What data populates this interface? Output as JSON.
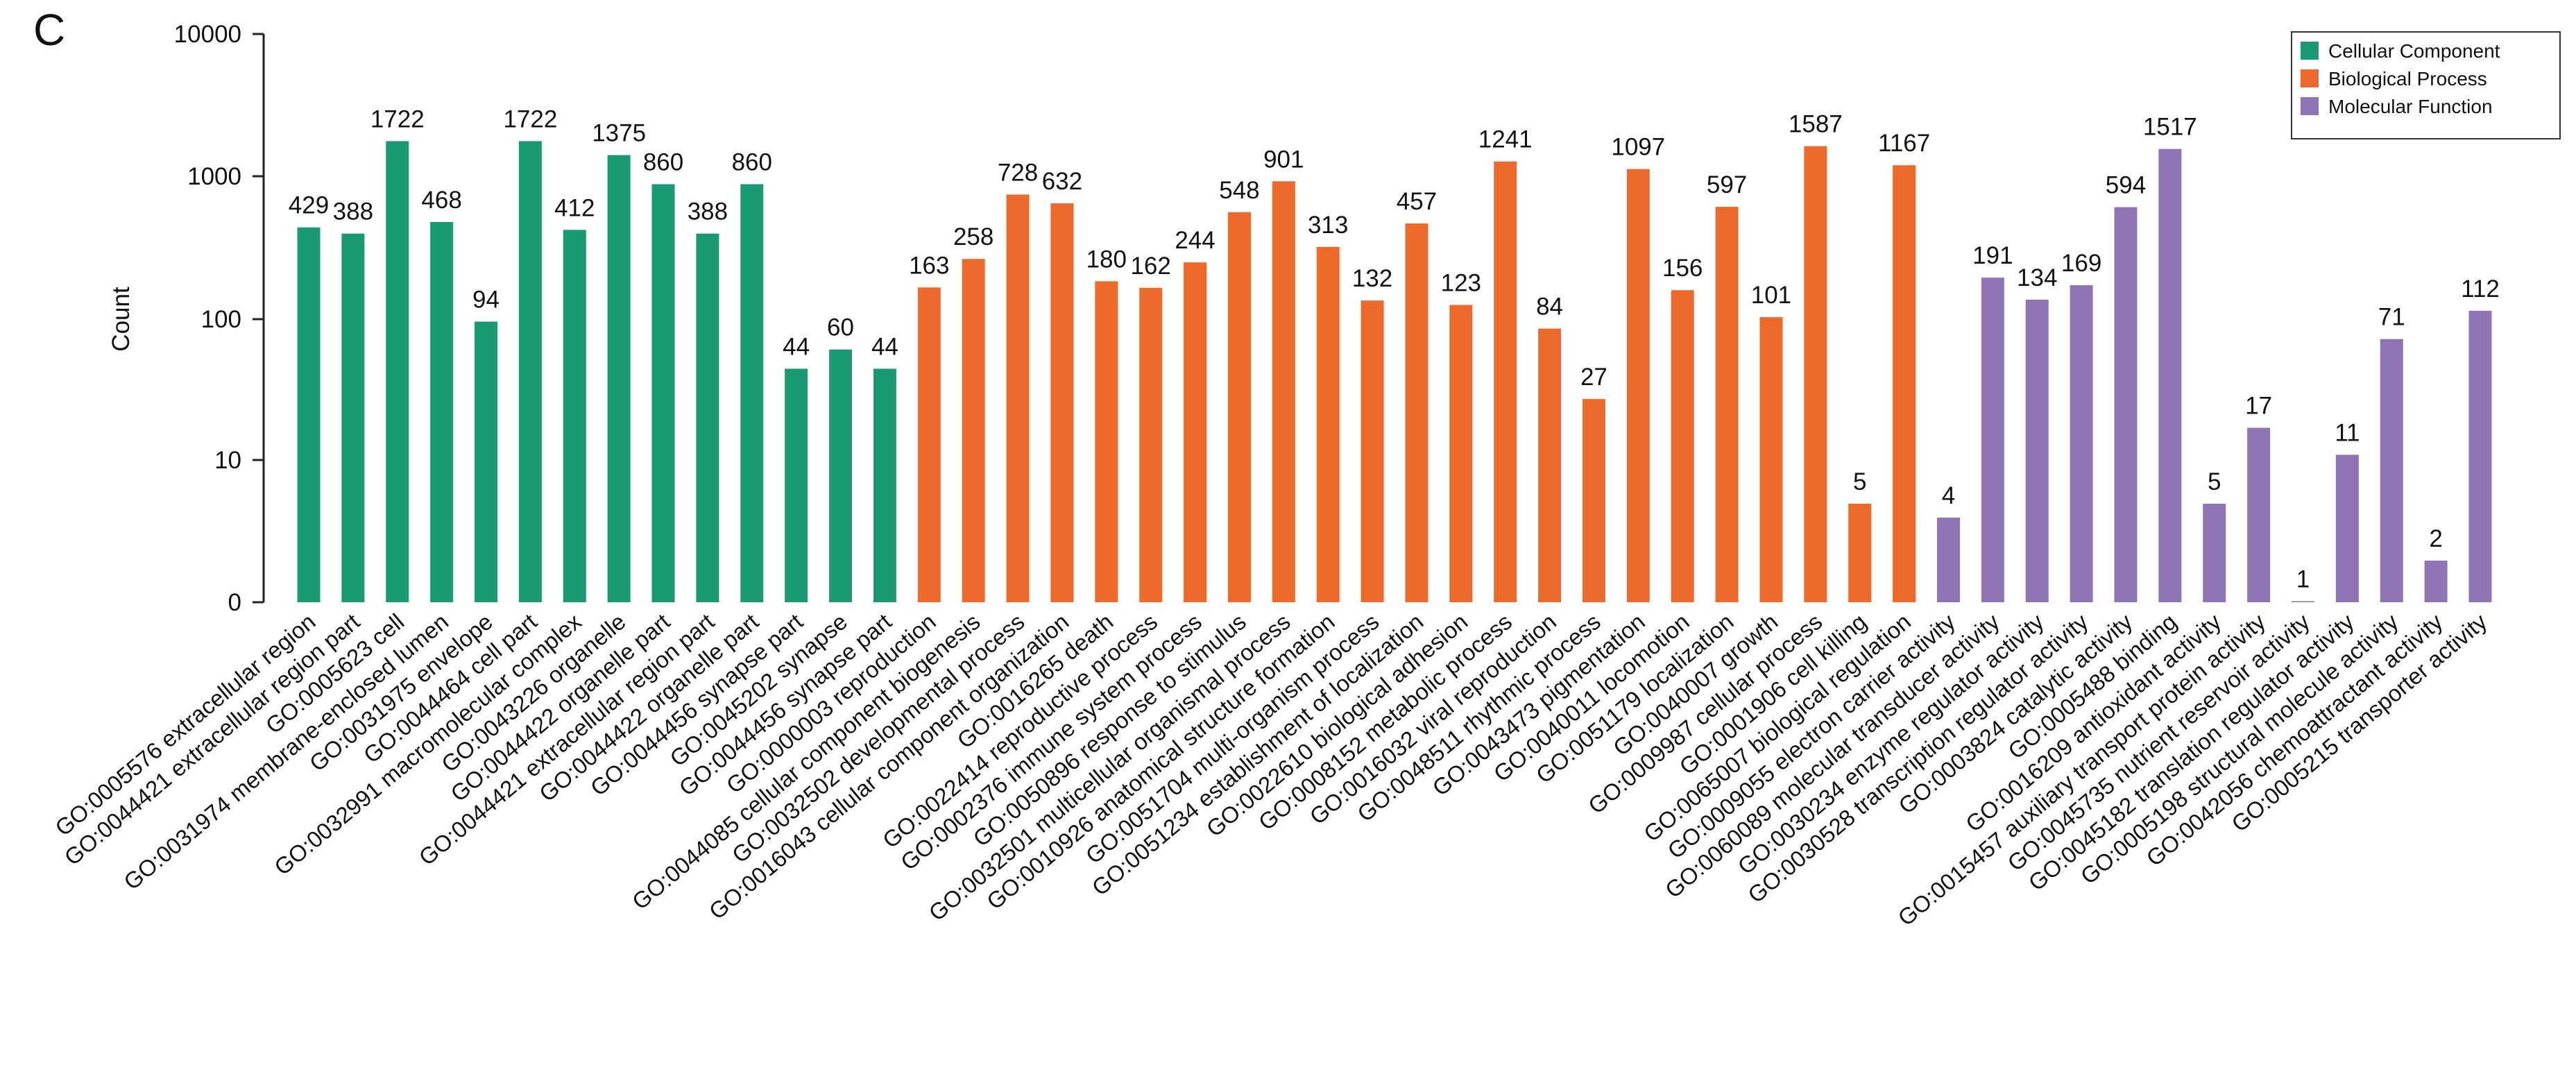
{
  "panel_label": "C",
  "chart_data": {
    "type": "bar",
    "title": "",
    "xlabel": "",
    "ylabel": "Count",
    "yscale": "log",
    "ylim": [
      0,
      10000
    ],
    "yticks": [
      {
        "value": 0,
        "label": "0"
      },
      {
        "value": 10,
        "label": "10"
      },
      {
        "value": 100,
        "label": "100"
      },
      {
        "value": 1000,
        "label": "1000"
      },
      {
        "value": 10000,
        "label": "10000"
      }
    ],
    "legend_position": "top-right",
    "groups": [
      {
        "name": "Cellular Component",
        "color": "#1a9975"
      },
      {
        "name": "Biological Process",
        "color": "#ee6a2c"
      },
      {
        "name": "Molecular Function",
        "color": "#8e74b4"
      }
    ],
    "bars": [
      {
        "category": "GO:0005576 extracellular region",
        "value": 429,
        "group": 0
      },
      {
        "category": "GO:0044421 extracellular region part",
        "value": 388,
        "group": 0
      },
      {
        "category": "GO:0005623 cell",
        "value": 1722,
        "group": 0
      },
      {
        "category": "GO:0031974 membrane-enclosed lumen",
        "value": 468,
        "group": 0
      },
      {
        "category": "GO:0031975 envelope",
        "value": 94,
        "group": 0
      },
      {
        "category": "GO:0044464 cell part",
        "value": 1722,
        "group": 0
      },
      {
        "category": "GO:0032991 macromolecular complex",
        "value": 412,
        "group": 0
      },
      {
        "category": "GO:0043226 organelle",
        "value": 1375,
        "group": 0
      },
      {
        "category": "GO:0044422 organelle part",
        "value": 860,
        "group": 0
      },
      {
        "category": "GO:0044421 extracellular region part",
        "value": 388,
        "group": 0
      },
      {
        "category": "GO:0044422 organelle part",
        "value": 860,
        "group": 0
      },
      {
        "category": "GO:0044456 synapse part",
        "value": 44,
        "group": 0
      },
      {
        "category": "GO:0045202 synapse",
        "value": 60,
        "group": 0
      },
      {
        "category": "GO:0044456 synapse part",
        "value": 44,
        "group": 0
      },
      {
        "category": "GO:0000003 reproduction",
        "value": 163,
        "group": 1
      },
      {
        "category": "GO:0044085 cellular component biogenesis",
        "value": 258,
        "group": 1
      },
      {
        "category": "GO:0032502 developmental process",
        "value": 728,
        "group": 1
      },
      {
        "category": "GO:0016043 cellular component organization",
        "value": 632,
        "group": 1
      },
      {
        "category": "GO:0016265 death",
        "value": 180,
        "group": 1
      },
      {
        "category": "GO:0022414 reproductive process",
        "value": 162,
        "group": 1
      },
      {
        "category": "GO:0002376 immune system process",
        "value": 244,
        "group": 1
      },
      {
        "category": "GO:0050896 response to stimulus",
        "value": 548,
        "group": 1
      },
      {
        "category": "GO:0032501 multicellular organismal process",
        "value": 901,
        "group": 1
      },
      {
        "category": "GO:0010926 anatomical structure formation",
        "value": 313,
        "group": 1
      },
      {
        "category": "GO:0051704 multi-organism process",
        "value": 132,
        "group": 1
      },
      {
        "category": "GO:0051234 establishment of localization",
        "value": 457,
        "group": 1
      },
      {
        "category": "GO:0022610 biological adhesion",
        "value": 123,
        "group": 1
      },
      {
        "category": "GO:0008152 metabolic process",
        "value": 1241,
        "group": 1
      },
      {
        "category": "GO:0016032 viral reproduction",
        "value": 84,
        "group": 1
      },
      {
        "category": "GO:0048511 rhythmic process",
        "value": 27,
        "group": 1
      },
      {
        "category": "GO:0043473 pigmentation",
        "value": 1097,
        "group": 1
      },
      {
        "category": "GO:0040011 locomotion",
        "value": 156,
        "group": 1
      },
      {
        "category": "GO:0051179 localization",
        "value": 597,
        "group": 1
      },
      {
        "category": "GO:0040007 growth",
        "value": 101,
        "group": 1
      },
      {
        "category": "GO:0009987 cellular process",
        "value": 1587,
        "group": 1
      },
      {
        "category": "GO:0001906 cell killing",
        "value": 5,
        "group": 1
      },
      {
        "category": "GO:0065007 biological regulation",
        "value": 1167,
        "group": 1
      },
      {
        "category": "GO:0009055 electron carrier activity",
        "value": 4,
        "group": 2
      },
      {
        "category": "GO:0060089 molecular transducer activity",
        "value": 191,
        "group": 2
      },
      {
        "category": "GO:0030234 enzyme regulator activity",
        "value": 134,
        "group": 2
      },
      {
        "category": "GO:0030528 transcription regulator activity",
        "value": 169,
        "group": 2
      },
      {
        "category": "GO:0003824 catalytic activity",
        "value": 594,
        "group": 2
      },
      {
        "category": "GO:0005488 binding",
        "value": 1517,
        "group": 2
      },
      {
        "category": "GO:0016209 antioxidant activity",
        "value": 5,
        "group": 2
      },
      {
        "category": "GO:0015457 auxiliary transport protein activity",
        "value": 17,
        "group": 2
      },
      {
        "category": "GO:0045735 nutrient reservoir activity",
        "value": 1,
        "group": 2
      },
      {
        "category": "GO:0045182 translation regulator activity",
        "value": 11,
        "group": 2
      },
      {
        "category": "GO:0005198 structural molecule activity",
        "value": 71,
        "group": 2
      },
      {
        "category": "GO:0042056 chemoattractant activity",
        "value": 2,
        "group": 2
      },
      {
        "category": "GO:0005215 transporter activity",
        "value": 112,
        "group": 2
      }
    ]
  }
}
